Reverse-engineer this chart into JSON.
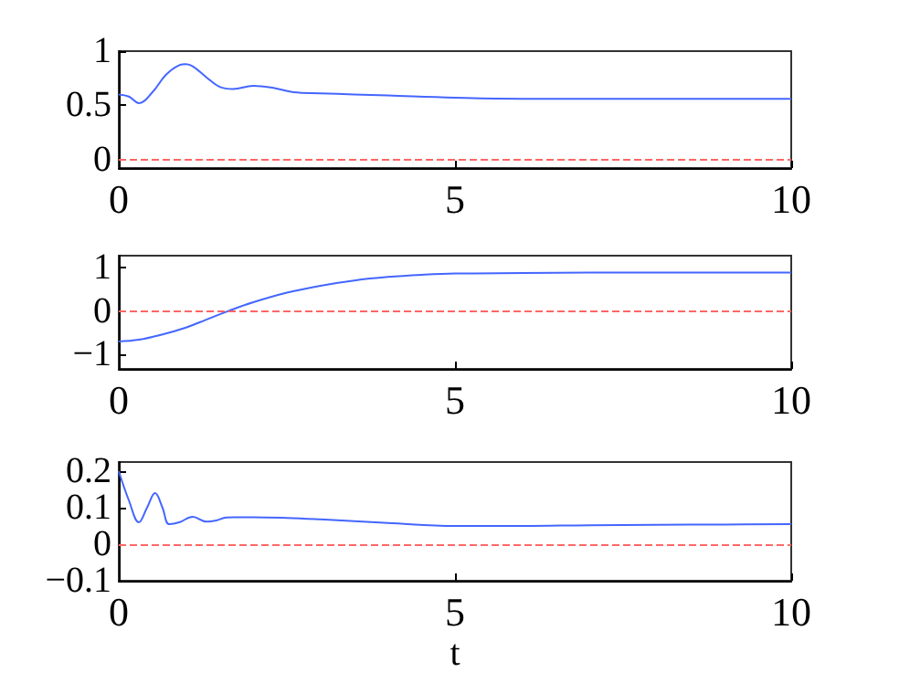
{
  "chart_data": [
    {
      "type": "line",
      "x": [
        0,
        0.15,
        0.3,
        0.5,
        0.7,
        0.9,
        1.0,
        1.1,
        1.3,
        1.5,
        1.7,
        2.0,
        2.3,
        2.6,
        3,
        3.5,
        4,
        5,
        6,
        7,
        8,
        9,
        10
      ],
      "series": [
        {
          "color": "#4466ff",
          "values": [
            0.6,
            0.58,
            0.52,
            0.62,
            0.78,
            0.87,
            0.88,
            0.86,
            0.76,
            0.67,
            0.65,
            0.68,
            0.66,
            0.62,
            0.61,
            0.6,
            0.59,
            0.57,
            0.56,
            0.56,
            0.56,
            0.56,
            0.56
          ]
        }
      ],
      "xlim": [
        0,
        10
      ],
      "xticks": [
        0,
        5,
        10
      ],
      "ylim": [
        -0.08,
        1
      ],
      "yticks": [
        0,
        0.5,
        1
      ],
      "ref_lines": [
        {
          "axis": "y",
          "value": 0,
          "color": "#ff6666",
          "line_style": "dashed"
        }
      ],
      "grid": false,
      "marker": "none"
    },
    {
      "type": "line",
      "x": [
        0,
        0.3,
        0.6,
        1,
        1.3,
        1.63,
        2,
        2.5,
        3,
        3.5,
        4,
        4.5,
        5,
        6,
        7,
        8,
        9,
        10
      ],
      "series": [
        {
          "color": "#4466ff",
          "values": [
            -0.7,
            -0.66,
            -0.56,
            -0.38,
            -0.2,
            0,
            0.2,
            0.42,
            0.58,
            0.7,
            0.78,
            0.83,
            0.86,
            0.87,
            0.88,
            0.88,
            0.88,
            0.88
          ]
        }
      ],
      "xlim": [
        0,
        10
      ],
      "xticks": [
        0,
        5,
        10
      ],
      "ylim": [
        -1.33,
        1.27
      ],
      "yticks": [
        -1,
        0,
        1
      ],
      "ref_lines": [
        {
          "axis": "y",
          "value": 0,
          "color": "#ff6666",
          "line_style": "dashed"
        }
      ],
      "grid": false,
      "marker": "none"
    },
    {
      "type": "line",
      "x": [
        0,
        0.15,
        0.3,
        0.42,
        0.54,
        0.65,
        0.75,
        0.9,
        1.1,
        1.3,
        1.45,
        1.6,
        2,
        2.5,
        3,
        3.5,
        4,
        5,
        6,
        7,
        8,
        9,
        10
      ],
      "series": [
        {
          "color": "#4466ff",
          "values": [
            0.2,
            0.12,
            0.06,
            0.1,
            0.14,
            0.1,
            0.055,
            0.06,
            0.075,
            0.062,
            0.065,
            0.073,
            0.074,
            0.072,
            0.068,
            0.063,
            0.058,
            0.05,
            0.05,
            0.052,
            0.053,
            0.054,
            0.055
          ]
        }
      ],
      "xlim": [
        0,
        10
      ],
      "xticks": [
        0,
        5,
        10
      ],
      "ylim": [
        -0.1,
        0.225
      ],
      "yticks": [
        -0.1,
        0,
        0.1,
        0.2
      ],
      "xlabel": "t",
      "ref_lines": [
        {
          "axis": "y",
          "value": 0,
          "color": "#ff6666",
          "line_style": "dashed"
        }
      ],
      "grid": false,
      "marker": "none"
    }
  ]
}
